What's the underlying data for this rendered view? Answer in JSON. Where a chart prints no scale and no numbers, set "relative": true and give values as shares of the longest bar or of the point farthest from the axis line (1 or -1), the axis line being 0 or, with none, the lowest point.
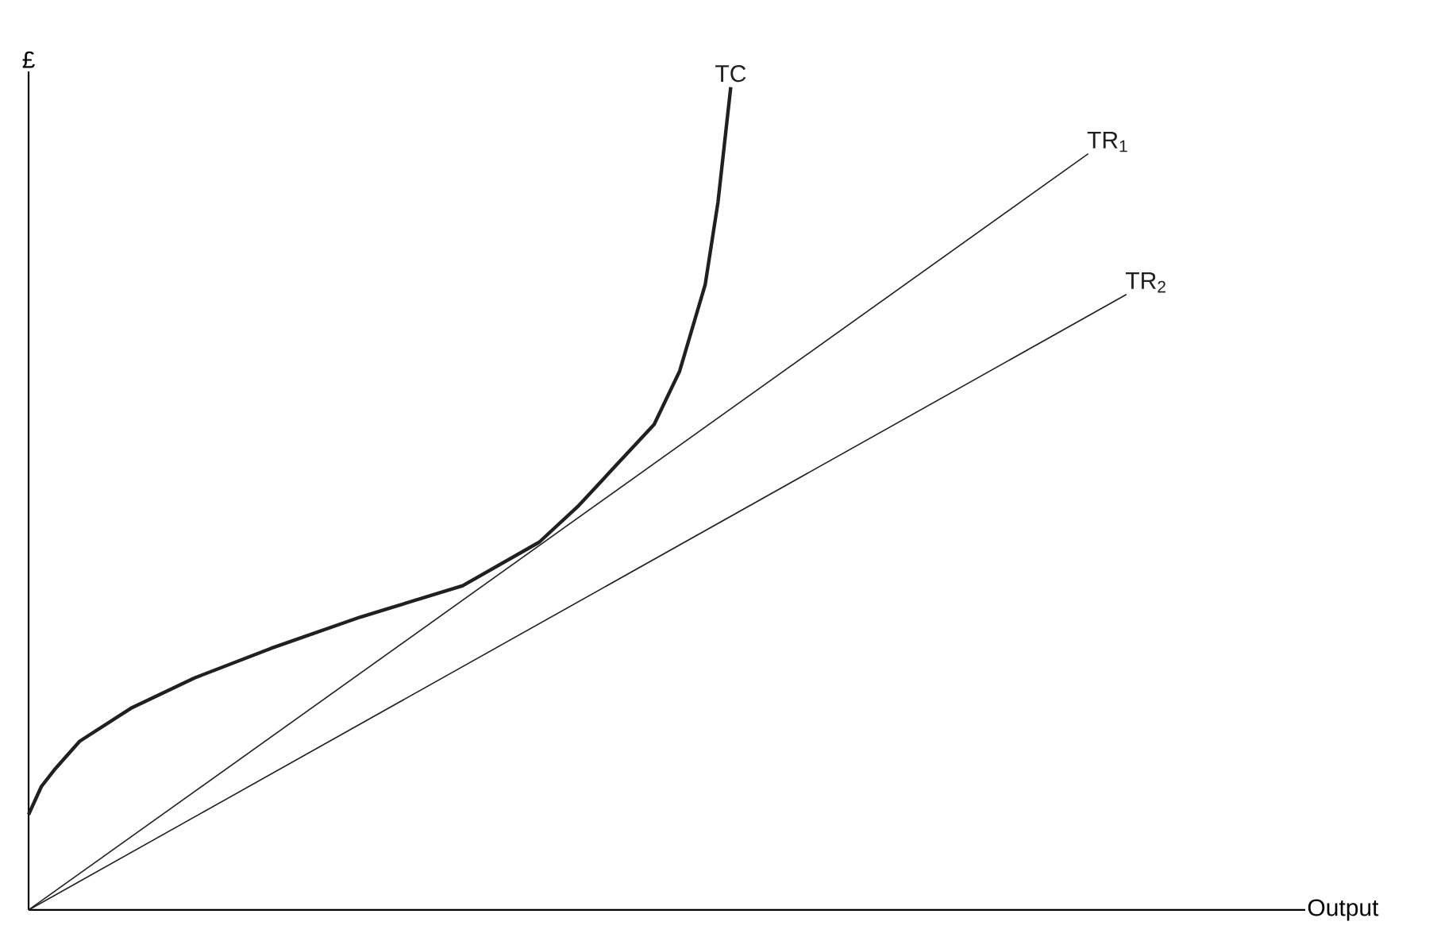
{
  "chart_data": {
    "type": "line",
    "relative": true,
    "xlabel": "Output",
    "ylabel": "£",
    "categories": [
      null,
      null,
      null,
      null,
      null,
      null,
      null,
      null,
      null,
      null,
      null,
      null,
      null,
      null,
      null,
      null,
      null,
      null,
      null,
      null,
      null,
      null,
      null,
      null,
      null,
      null,
      null,
      null,
      null,
      null,
      null,
      null,
      null,
      null,
      null,
      null,
      null,
      null,
      null,
      null,
      null,
      null,
      null,
      null,
      null,
      null,
      null,
      null,
      null,
      null,
      null,
      null,
      null,
      null,
      null,
      null,
      null,
      null,
      null,
      null,
      null,
      null,
      null,
      null,
      null,
      null,
      null,
      null,
      null,
      null,
      null,
      null,
      null,
      null,
      null,
      null,
      null,
      null,
      null,
      null,
      null,
      null,
      null,
      null,
      null,
      null,
      null,
      null,
      null,
      null,
      null,
      null,
      null,
      null,
      null,
      null,
      null,
      null,
      null,
      null,
      null
    ],
    "series": [
      {
        "name": "TC",
        "color": "#231f20",
        "values": [
          0.116,
          0.15,
          0.17,
          null,
          0.205,
          null,
          null,
          null,
          0.245,
          null,
          null,
          null,
          null,
          0.282,
          null,
          null,
          null,
          null,
          null,
          0.318,
          null,
          null,
          null,
          null,
          null,
          null,
          0.356,
          null,
          null,
          null,
          null,
          null,
          null,
          null,
          0.394,
          null,
          null,
          null,
          null,
          null,
          0.447,
          null,
          null,
          0.49,
          null,
          null,
          0.54,
          null,
          null,
          0.59,
          null,
          0.655,
          null,
          0.76,
          0.86,
          1.0,
          null,
          null,
          null,
          null,
          null,
          null,
          null,
          null,
          null,
          null,
          null,
          null,
          null,
          null,
          null,
          null,
          null,
          null,
          null,
          null,
          null,
          null,
          null,
          null,
          null,
          null,
          null,
          null,
          null,
          null,
          null,
          null,
          null,
          null,
          null,
          null,
          null,
          null,
          null,
          null,
          null,
          null,
          null,
          null,
          null
        ]
      },
      {
        "name": "TR$_{1}$",
        "color": "#231f20",
        "values": [
          0,
          null,
          null,
          null,
          null,
          null,
          null,
          null,
          null,
          null,
          null,
          null,
          null,
          null,
          null,
          null,
          null,
          null,
          null,
          null,
          null,
          null,
          null,
          null,
          null,
          null,
          null,
          null,
          null,
          null,
          null,
          null,
          null,
          null,
          null,
          null,
          null,
          null,
          null,
          null,
          null,
          null,
          null,
          null,
          null,
          null,
          null,
          null,
          null,
          null,
          null,
          null,
          null,
          null,
          null,
          null,
          null,
          null,
          null,
          null,
          null,
          null,
          null,
          null,
          null,
          null,
          null,
          null,
          null,
          null,
          null,
          null,
          null,
          null,
          null,
          null,
          null,
          null,
          null,
          null,
          null,
          null,
          null,
          0.919,
          null,
          null,
          null,
          null,
          null,
          null,
          null,
          null,
          null,
          null,
          null,
          null,
          null,
          null,
          null,
          null,
          null
        ]
      },
      {
        "name": "TR$_{2}$",
        "color": "#231f20",
        "values": [
          0,
          null,
          null,
          null,
          null,
          null,
          null,
          null,
          null,
          null,
          null,
          null,
          null,
          null,
          null,
          null,
          null,
          null,
          null,
          null,
          null,
          null,
          null,
          null,
          null,
          null,
          null,
          null,
          null,
          null,
          null,
          null,
          null,
          null,
          null,
          null,
          null,
          null,
          null,
          null,
          null,
          null,
          null,
          null,
          null,
          null,
          null,
          null,
          null,
          null,
          null,
          null,
          null,
          null,
          null,
          null,
          null,
          null,
          null,
          null,
          null,
          null,
          null,
          null,
          null,
          null,
          null,
          null,
          null,
          null,
          null,
          null,
          null,
          null,
          null,
          null,
          null,
          null,
          null,
          null,
          null,
          null,
          null,
          null,
          null,
          null,
          0.748,
          null,
          null,
          null,
          null,
          null,
          null,
          null,
          null,
          null,
          null,
          null,
          null,
          null,
          null
        ]
      }
    ]
  }
}
